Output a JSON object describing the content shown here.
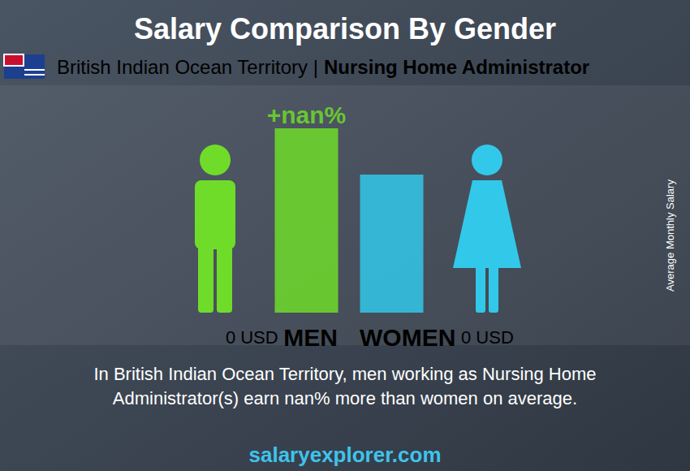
{
  "chart_data": {
    "type": "bar",
    "title": "Salary Comparison By Gender",
    "subtitle": "British Indian Ocean Territory | Nursing Home Administrator",
    "categories": [
      "MEN",
      "WOMEN"
    ],
    "values": [
      0,
      0
    ],
    "value_labels": [
      "0 USD",
      "0 USD"
    ],
    "colors": [
      "#6fdc2a",
      "#32c8ea"
    ],
    "annotation": "+nan%",
    "y_label": "Average Monthly Salary",
    "description": [
      "In British Indian Ocean Territory, men working as Nursing Home",
      "Administrator(s) earn nan% more than women on average."
    ],
    "source": "salaryexplorer.com",
    "data_labels": true,
    "tick_labels": false,
    "grid": false
  }
}
